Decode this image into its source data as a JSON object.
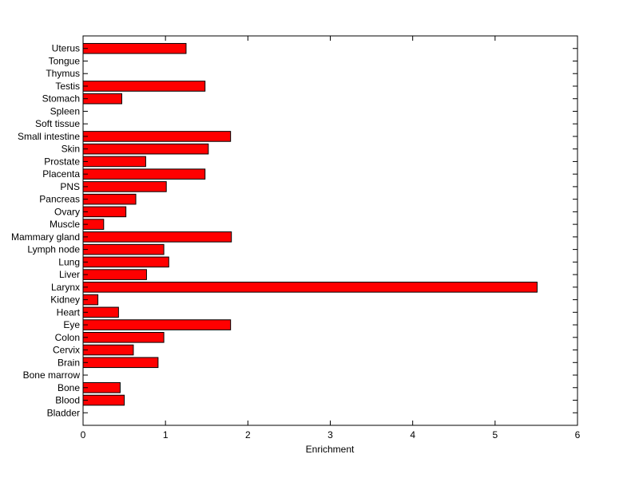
{
  "chart_data": {
    "type": "bar",
    "orientation": "horizontal",
    "title": "",
    "xlabel": "Enrichment",
    "ylabel": "",
    "xlim": [
      0,
      6
    ],
    "xticks": [
      "0",
      "1",
      "2",
      "3",
      "4",
      "5",
      "6"
    ],
    "grid": false,
    "bar_color": "#ff0000",
    "categories": [
      "Bladder",
      "Blood",
      "Bone",
      "Bone marrow",
      "Brain",
      "Cervix",
      "Colon",
      "Eye",
      "Heart",
      "Kidney",
      "Larynx",
      "Liver",
      "Lung",
      "Lymph node",
      "Mammary gland",
      "Muscle",
      "Ovary",
      "Pancreas",
      "PNS",
      "Placenta",
      "Prostate",
      "Skin",
      "Small intestine",
      "Soft tissue",
      "Spleen",
      "Stomach",
      "Testis",
      "Thymus",
      "Tongue",
      "Uterus"
    ],
    "values": [
      0,
      0.5,
      0.45,
      0,
      0.91,
      0.61,
      0.98,
      1.79,
      0.43,
      0.18,
      5.51,
      0.77,
      1.04,
      0.98,
      1.8,
      0.25,
      0.52,
      0.64,
      1.01,
      1.48,
      0.76,
      1.52,
      1.79,
      0,
      0,
      0.47,
      1.48,
      0,
      0,
      1.25
    ]
  }
}
